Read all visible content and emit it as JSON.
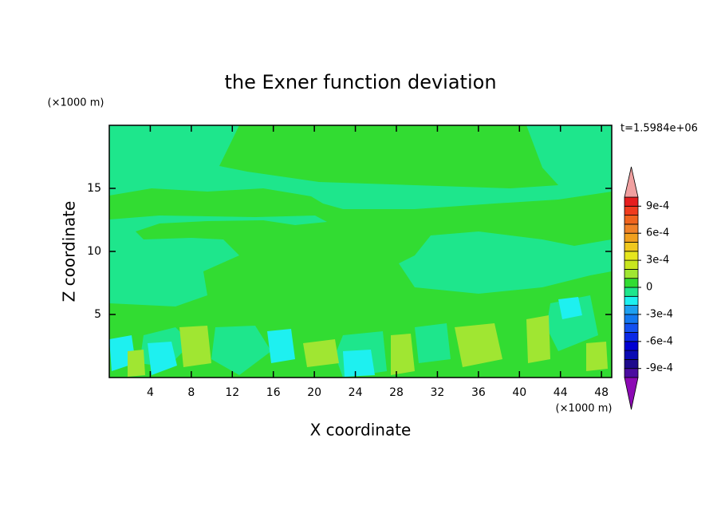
{
  "chart_data": {
    "type": "contour",
    "title": "the Exner function deviation",
    "x_label": "X coordinate",
    "y_label": "Z coordinate",
    "x_unit": "(×1000 m)",
    "y_unit": "(×1000 m)",
    "time_label": "t=1.5984e+06",
    "xlim": [
      0,
      49
    ],
    "ylim": [
      0,
      20
    ],
    "xticks": [
      4,
      8,
      12,
      16,
      20,
      24,
      28,
      32,
      36,
      40,
      44,
      48
    ],
    "yticks": [
      5,
      10,
      15
    ],
    "levels": [
      -0.001,
      -0.0009,
      -0.0008,
      -0.0007,
      -0.0006,
      -0.0005,
      -0.0004,
      -0.0003,
      -0.0002,
      -0.0001,
      0,
      0.0001,
      0.0002,
      0.0003,
      0.0004,
      0.0005,
      0.0006,
      0.0007,
      0.0008,
      0.0009,
      0.001
    ],
    "colors": [
      "#4b0ca0",
      "#1e0a8c",
      "#0a0ab4",
      "#0000d2",
      "#0a28e6",
      "#1450f0",
      "#1478f0",
      "#1ea0f0",
      "#1ef0f0",
      "#1ee68c",
      "#32dc32",
      "#a0e632",
      "#c8e61e",
      "#e6e61e",
      "#f0c81e",
      "#f0a01e",
      "#f08228",
      "#f0641e",
      "#f03c1e",
      "#e61e1e"
    ],
    "extend_colors": [
      "#8c0ab4",
      "#f0a0a0"
    ],
    "colorbar_ticks": [
      {
        "value": -0.0009,
        "label": "-9e-4"
      },
      {
        "value": -0.0006,
        "label": "-6e-4"
      },
      {
        "value": -0.0003,
        "label": "-3e-4"
      },
      0,
      {
        "value": 0.0003,
        "label": "3e-4"
      },
      {
        "value": 0.0006,
        "label": "6e-4"
      },
      {
        "value": 0.0009,
        "label": "9e-4"
      }
    ]
  }
}
